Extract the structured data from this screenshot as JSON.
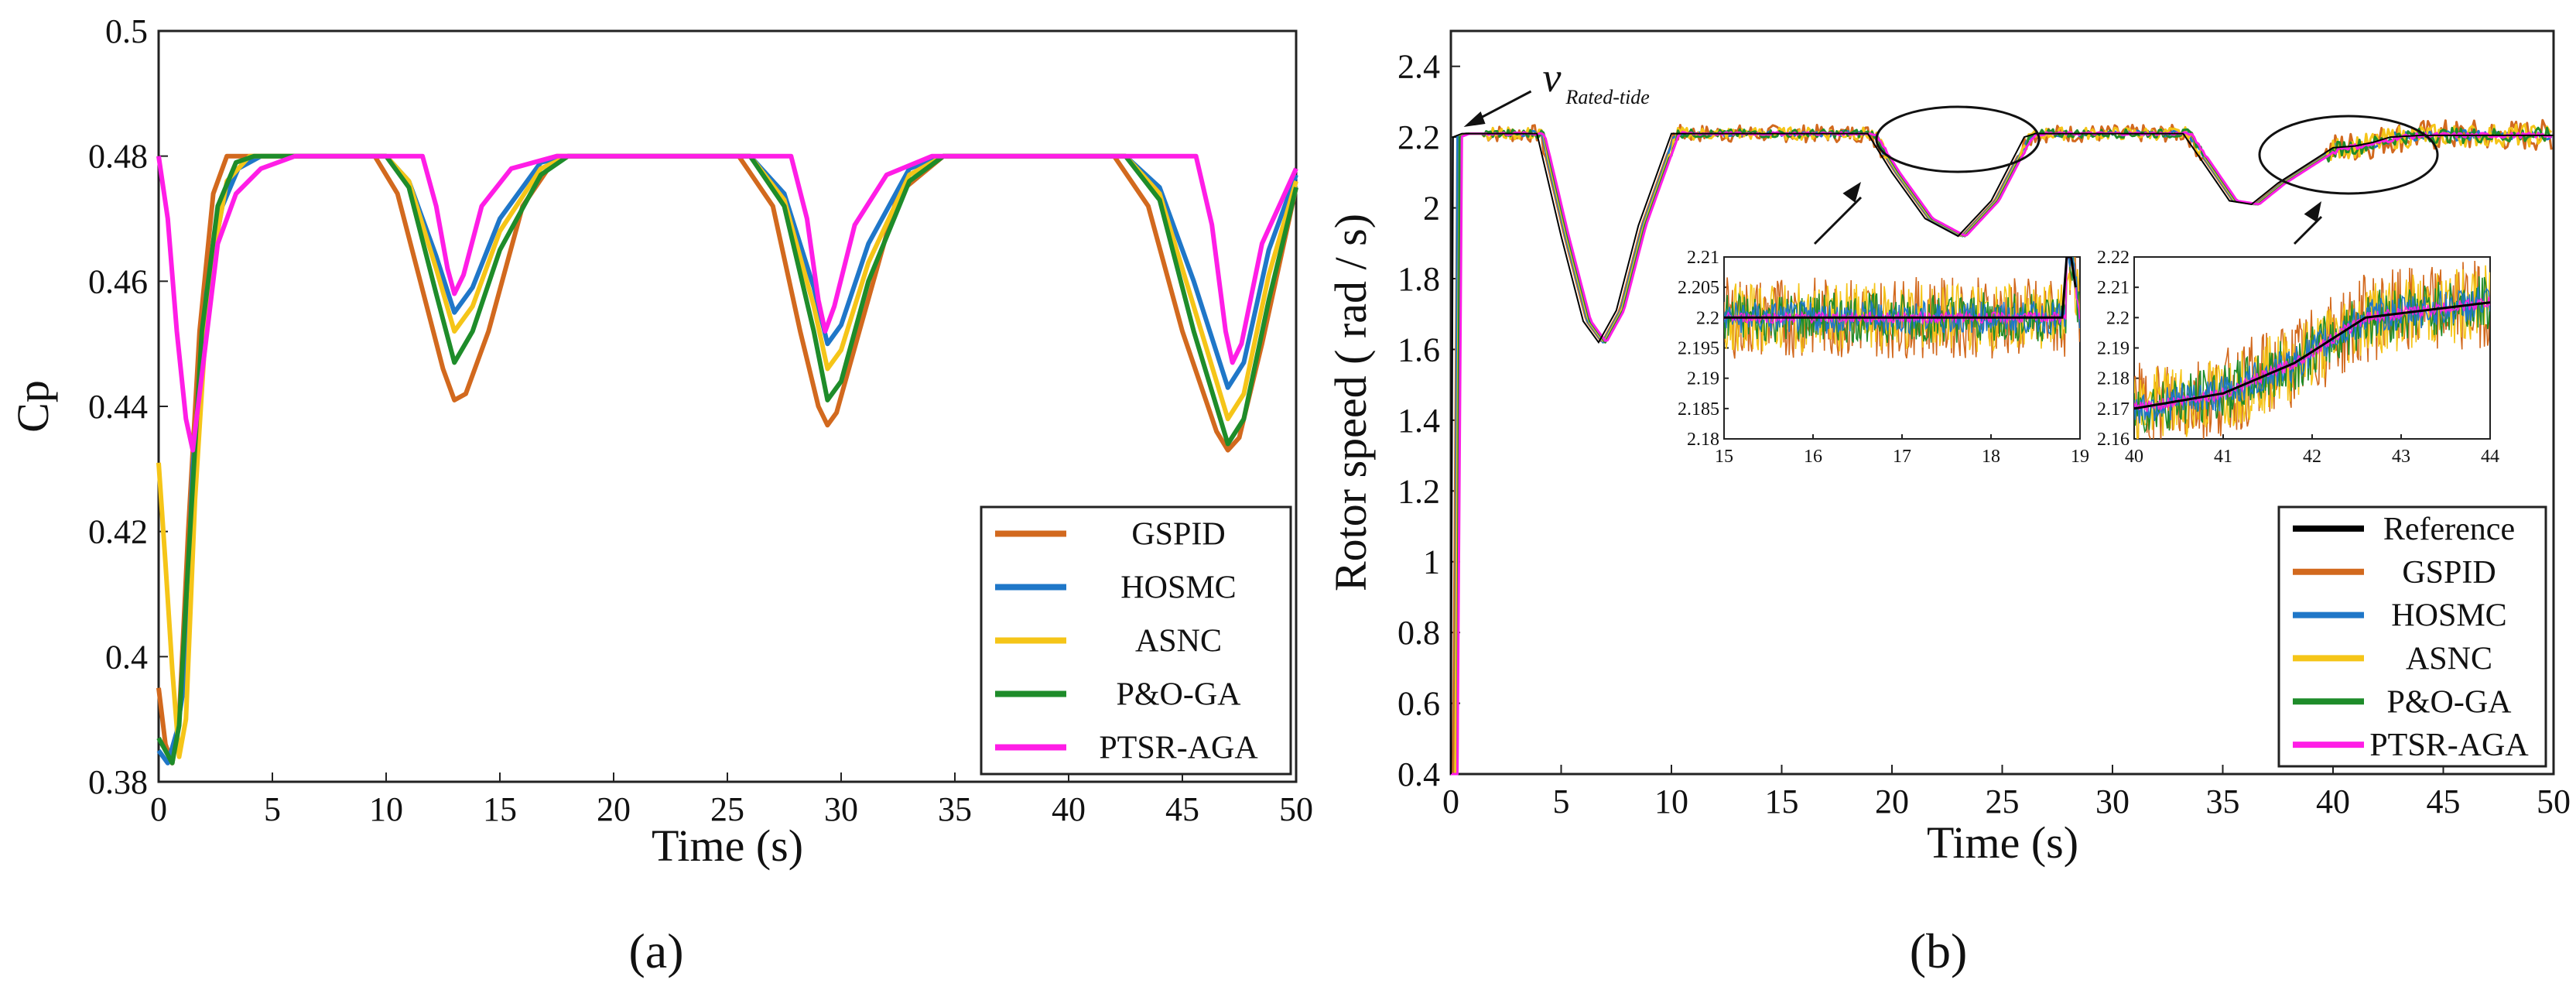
{
  "figure": {
    "panel_labels": {
      "a": "(a)",
      "b": "(b)"
    }
  },
  "colors": {
    "GSPID": "#d2691e",
    "HOSMC": "#1f77c8",
    "ASNC": "#f5c518",
    "P&O-GA": "#1e8c2a",
    "PTSR-AGA": "#ff1de6",
    "Reference": "#000000"
  },
  "chart_data": [
    {
      "id": "a",
      "type": "line",
      "title": "",
      "xlabel": "Time (s)",
      "ylabel": "Cp",
      "xlim": [
        0,
        50
      ],
      "ylim": [
        0.38,
        0.5
      ],
      "xticks": [
        0,
        5,
        10,
        15,
        20,
        25,
        30,
        35,
        40,
        45,
        50
      ],
      "yticks": [
        0.38,
        0.4,
        0.42,
        0.44,
        0.46,
        0.48,
        0.5
      ],
      "ytick_labels": [
        "0.38",
        "0.4",
        "0.42",
        "0.44",
        "0.46",
        "0.48",
        "0.5"
      ],
      "legend_position": "bottom-right",
      "series": [
        {
          "name": "GSPID",
          "x": [
            0,
            0.3,
            0.6,
            0.9,
            1.3,
            1.8,
            2.4,
            3.0,
            3.6,
            9.5,
            10.5,
            11.5,
            12.5,
            13.0,
            13.5,
            14.5,
            16.0,
            17.5,
            25.5,
            27.0,
            28.2,
            29.0,
            29.4,
            29.8,
            30.8,
            32.5,
            34.5,
            42.0,
            43.5,
            45.0,
            46.5,
            47.0,
            47.5,
            48.5,
            50
          ],
          "y": [
            0.395,
            0.386,
            0.383,
            0.39,
            0.42,
            0.452,
            0.474,
            0.48,
            0.48,
            0.48,
            0.474,
            0.46,
            0.446,
            0.441,
            0.442,
            0.452,
            0.472,
            0.48,
            0.48,
            0.472,
            0.452,
            0.44,
            0.437,
            0.439,
            0.452,
            0.474,
            0.48,
            0.48,
            0.472,
            0.452,
            0.436,
            0.433,
            0.435,
            0.45,
            0.475
          ]
        },
        {
          "name": "HOSMC",
          "x": [
            0,
            0.4,
            0.8,
            1.1,
            1.5,
            2.1,
            2.8,
            3.5,
            4.5,
            10.0,
            11.0,
            12.2,
            13.0,
            13.8,
            15.0,
            16.8,
            18.0,
            26.0,
            27.5,
            28.8,
            29.4,
            30.0,
            31.2,
            33.0,
            34.5,
            42.5,
            44.0,
            45.5,
            47.0,
            47.7,
            48.8,
            50
          ],
          "y": [
            0.385,
            0.383,
            0.388,
            0.395,
            0.43,
            0.458,
            0.472,
            0.478,
            0.48,
            0.48,
            0.476,
            0.464,
            0.455,
            0.459,
            0.47,
            0.479,
            0.48,
            0.48,
            0.474,
            0.459,
            0.45,
            0.453,
            0.466,
            0.478,
            0.48,
            0.48,
            0.475,
            0.46,
            0.443,
            0.447,
            0.465,
            0.477
          ]
        },
        {
          "name": "ASNC",
          "x": [
            0,
            0.3,
            0.6,
            0.9,
            1.2,
            1.6,
            2.2,
            3.0,
            4.0,
            10.0,
            11.0,
            12.2,
            13.0,
            13.8,
            15.0,
            16.8,
            18.0,
            26.0,
            27.5,
            28.8,
            29.4,
            30.0,
            31.2,
            33.0,
            34.5,
            42.5,
            44.0,
            45.5,
            47.0,
            47.7,
            48.8,
            50
          ],
          "y": [
            0.431,
            0.415,
            0.398,
            0.384,
            0.39,
            0.425,
            0.46,
            0.476,
            0.48,
            0.48,
            0.476,
            0.462,
            0.452,
            0.456,
            0.468,
            0.478,
            0.48,
            0.48,
            0.473,
            0.456,
            0.446,
            0.449,
            0.463,
            0.477,
            0.48,
            0.48,
            0.474,
            0.456,
            0.438,
            0.442,
            0.461,
            0.476
          ]
        },
        {
          "name": "P&O-GA",
          "x": [
            0,
            0.3,
            0.6,
            0.9,
            1.3,
            1.9,
            2.6,
            3.4,
            4.2,
            10.0,
            11.0,
            12.2,
            13.0,
            13.8,
            15.0,
            16.8,
            18.0,
            26.0,
            27.5,
            28.8,
            29.4,
            30.0,
            31.2,
            33.0,
            34.5,
            42.5,
            44.0,
            45.5,
            47.0,
            47.7,
            48.8,
            50
          ],
          "y": [
            0.387,
            0.385,
            0.383,
            0.389,
            0.415,
            0.452,
            0.472,
            0.479,
            0.48,
            0.48,
            0.475,
            0.458,
            0.447,
            0.452,
            0.465,
            0.477,
            0.48,
            0.48,
            0.472,
            0.452,
            0.441,
            0.444,
            0.46,
            0.476,
            0.48,
            0.48,
            0.473,
            0.452,
            0.434,
            0.438,
            0.457,
            0.475
          ]
        },
        {
          "name": "PTSR-AGA",
          "x": [
            0,
            0.4,
            0.8,
            1.2,
            1.5,
            2.0,
            2.6,
            3.4,
            4.5,
            6.0,
            11.6,
            12.2,
            12.7,
            13.0,
            13.4,
            14.2,
            15.5,
            17.5,
            27.8,
            28.5,
            29.0,
            29.3,
            29.7,
            30.6,
            32.0,
            34.0,
            45.6,
            46.3,
            46.9,
            47.2,
            47.6,
            48.5,
            50
          ],
          "y": [
            0.48,
            0.47,
            0.452,
            0.438,
            0.433,
            0.448,
            0.466,
            0.474,
            0.478,
            0.48,
            0.48,
            0.472,
            0.462,
            0.458,
            0.461,
            0.472,
            0.478,
            0.48,
            0.48,
            0.47,
            0.457,
            0.452,
            0.456,
            0.469,
            0.477,
            0.48,
            0.48,
            0.469,
            0.452,
            0.447,
            0.45,
            0.466,
            0.478
          ]
        }
      ]
    },
    {
      "id": "b",
      "type": "line",
      "title": "",
      "xlabel": "Time (s)",
      "ylabel": "Rotor speed ( rad / s)",
      "xlim": [
        0,
        50
      ],
      "ylim": [
        0.4,
        2.5
      ],
      "xticks": [
        0,
        5,
        10,
        15,
        20,
        25,
        30,
        35,
        40,
        45,
        50
      ],
      "yticks": [
        0.4,
        0.6,
        0.8,
        1,
        1.2,
        1.4,
        1.6,
        1.8,
        2,
        2.2,
        2.4
      ],
      "ytick_labels": [
        "0.4",
        "0.6",
        "0.8",
        "1",
        "1.2",
        "1.4",
        "1.6",
        "1.8",
        "2",
        "2.2",
        "2.4"
      ],
      "legend_position": "bottom-right",
      "annotation": {
        "label": "v",
        "subscript": "Rated-tide",
        "x": 0.3,
        "y": 2.22
      },
      "reference": {
        "name": "Reference",
        "x": [
          0,
          0.1,
          0.5,
          3.9,
          5.0,
          6.0,
          6.7,
          7.5,
          8.5,
          10.0,
          18.9,
          20.0,
          21.5,
          23.0,
          24.5,
          26.0,
          26.5,
          33.2,
          34.2,
          35.3,
          36.3,
          37.5,
          40.0,
          41.0,
          41.8,
          42.6,
          44.0,
          50
        ],
        "y": [
          0.4,
          2.2,
          2.21,
          2.21,
          1.92,
          1.68,
          1.62,
          1.71,
          1.95,
          2.21,
          2.21,
          2.1,
          1.97,
          1.92,
          2.02,
          2.2,
          2.21,
          2.21,
          2.12,
          2.02,
          2.01,
          2.07,
          2.17,
          2.175,
          2.185,
          2.2,
          2.205,
          2.205
        ]
      },
      "series": [
        {
          "name": "GSPID",
          "noise": 0.025
        },
        {
          "name": "HOSMC",
          "noise": 0.008
        },
        {
          "name": "ASNC",
          "noise": 0.018
        },
        {
          "name": "P&O-GA",
          "noise": 0.012
        },
        {
          "name": "PTSR-AGA",
          "noise": 0.004
        }
      ],
      "insets": [
        {
          "id": "b-inset-1",
          "xlim": [
            15,
            19
          ],
          "ylim": [
            2.18,
            2.21
          ],
          "xticks": [
            15,
            16,
            17,
            18,
            19
          ],
          "yticks": [
            2.18,
            2.185,
            2.19,
            2.195,
            2.2,
            2.205,
            2.21
          ],
          "ytick_labels": [
            "2.18",
            "2.185",
            "2.19",
            "2.195",
            "2.2",
            "2.205",
            "2.21"
          ],
          "zoom_of": {
            "x": [
              15,
              19
            ],
            "y": [
              2.18,
              2.21
            ]
          }
        },
        {
          "id": "b-inset-2",
          "xlim": [
            40,
            44
          ],
          "ylim": [
            2.16,
            2.22
          ],
          "xticks": [
            40,
            41,
            42,
            43,
            44
          ],
          "yticks": [
            2.16,
            2.17,
            2.18,
            2.19,
            2.2,
            2.21,
            2.22
          ],
          "ytick_labels": [
            "2.16",
            "2.17",
            "2.18",
            "2.19",
            "2.2",
            "2.21",
            "2.22"
          ],
          "zoom_of": {
            "x": [
              40,
              44
            ],
            "y": [
              2.16,
              2.22
            ]
          }
        }
      ],
      "legend_entries": [
        "Reference",
        "GSPID",
        "HOSMC",
        "ASNC",
        "P&O-GA",
        "PTSR-AGA"
      ]
    }
  ]
}
